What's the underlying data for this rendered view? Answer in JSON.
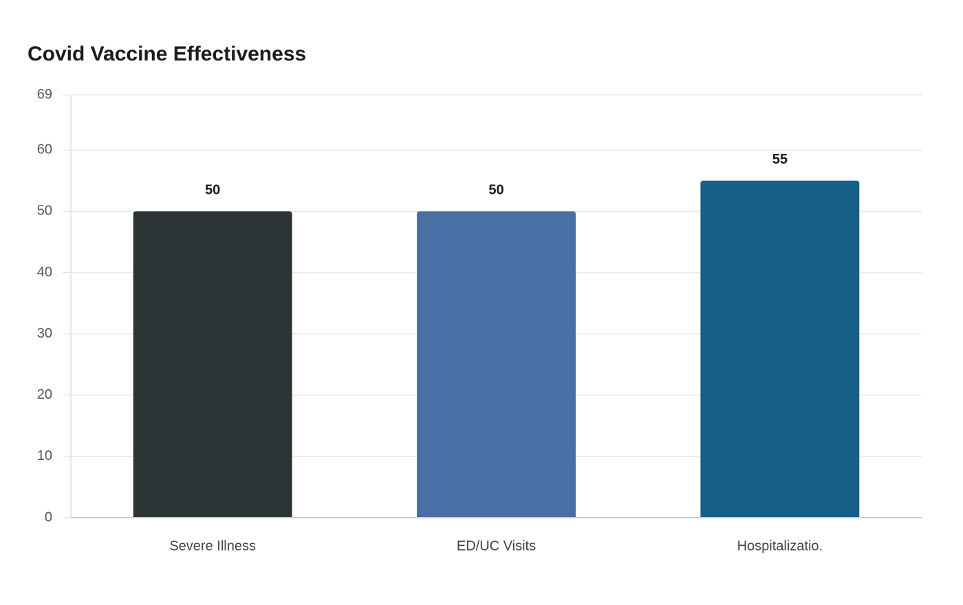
{
  "chart_data": {
    "type": "bar",
    "title": "Covid Vaccine Effectiveness",
    "categories": [
      "Severe Illness",
      "ED/UC Visits",
      "Hospitalizatio."
    ],
    "values": [
      50,
      50,
      55
    ],
    "colors": [
      "#2d3436",
      "#4a6fa5",
      "#166088"
    ],
    "ylim": [
      0,
      69
    ],
    "yticks": [
      0,
      10,
      20,
      30,
      40,
      50,
      60,
      69
    ],
    "grid": true
  }
}
